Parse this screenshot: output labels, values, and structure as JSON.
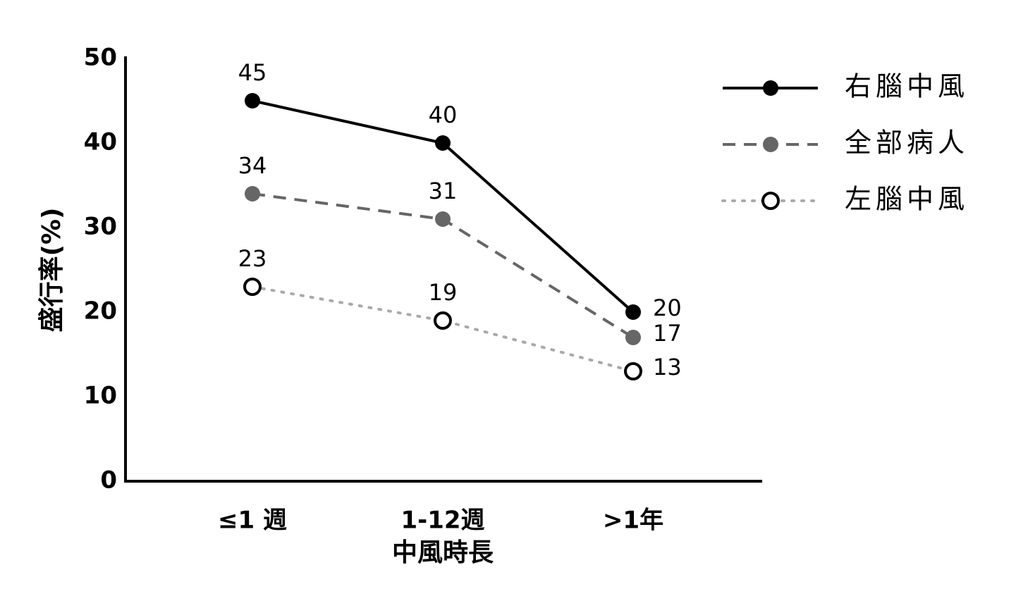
{
  "chart_data": {
    "type": "line",
    "categories": [
      "≤1 週",
      "1-12週",
      ">1年"
    ],
    "x_label": "中風時長",
    "y_label": "盛行率(%)",
    "ylim": [
      0,
      50
    ],
    "yticks": [
      0,
      10,
      20,
      30,
      40,
      50
    ],
    "legend": "upper right",
    "series": [
      {
        "name": "右腦中風",
        "color": "#000000",
        "line_style": "solid",
        "marker": "filled",
        "values": [
          45,
          40,
          20
        ]
      },
      {
        "name": "全部病人",
        "color": "#666666",
        "line_style": "dashed",
        "marker": "filled",
        "values": [
          34,
          31,
          17
        ]
      },
      {
        "name": "左腦中風",
        "color": "#aaaaaa",
        "line_style": "dotted",
        "marker": "open",
        "values": [
          23,
          19,
          13
        ]
      }
    ]
  }
}
